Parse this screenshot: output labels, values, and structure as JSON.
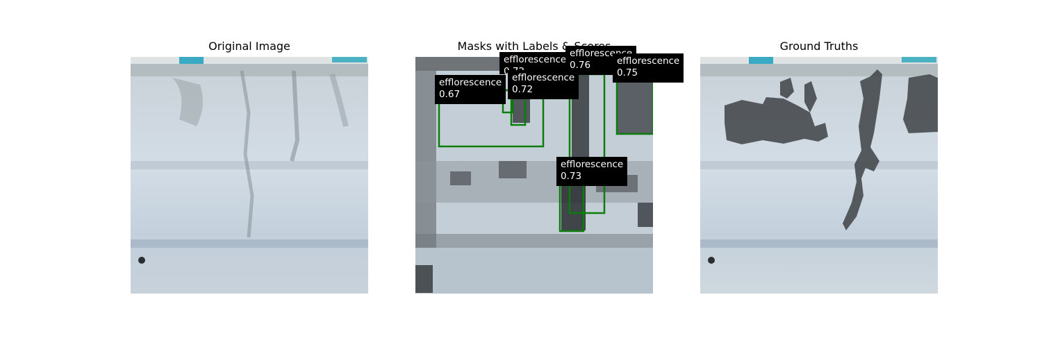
{
  "panels": {
    "original": {
      "title": "Original Image"
    },
    "masks": {
      "title": "Masks with Labels & Scores"
    },
    "ground_truth": {
      "title": "Ground Truths"
    }
  },
  "detections": [
    {
      "label": "efflorescence",
      "score": "0.67"
    },
    {
      "label": "efflorescence",
      "score": "0.72"
    },
    {
      "label": "efflorescence",
      "score": "0.72"
    },
    {
      "label": "efflorescence",
      "score": "0.76"
    },
    {
      "label": "efflorescence",
      "score": "0.75"
    },
    {
      "label": "efflorescence",
      "score": "0.73"
    }
  ],
  "colors": {
    "box": "#0a7d0a",
    "label_bg": "#000000",
    "label_text": "#ffffff",
    "wall": "#c9d3dc",
    "mask": "#3f4347"
  }
}
